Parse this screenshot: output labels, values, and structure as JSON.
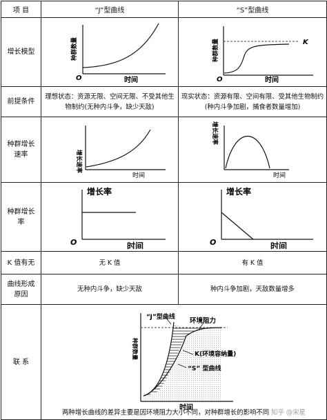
{
  "header": {
    "c0": "项 目",
    "c1": "“J”型曲线",
    "c2": "“S”型曲线"
  },
  "rows": {
    "model": "增长模型",
    "premise": "前提条件",
    "rate_curve": "种群增长速率",
    "rate": "种群增长率",
    "k": "K 值有无",
    "cause": "曲线形成原因",
    "relation": "联 系"
  },
  "premise": {
    "j": "理想状态：资源无限、空间无限、不受其他生物制约(无种内斗争，缺少天敌)",
    "s": "现实状态：资源有限、空间有限、受其他生物制约(种内斗争加剧，捕食者数量增加)"
  },
  "k_value": {
    "j": "无 K 值",
    "s": "有 K 值"
  },
  "cause": {
    "j": "无种内斗争，缺少天敌",
    "s": "种内斗争加剧，天敌数量增多"
  },
  "axes": {
    "population": "种群数量",
    "time": "时间",
    "origin": "O",
    "k_label": "K",
    "rate_speed": "增长速率",
    "growth_rate": "增长率"
  },
  "relation": {
    "j_curve": "“J”型曲线",
    "resistance": "环境阻力",
    "k_capacity": "K(环境容纳量)",
    "s_curve": "“S” 型曲线",
    "caption": "两种增长曲线的差异主要是因环境阻力大小不同，对种群增长的影响不同",
    "watermark": "知乎 @宋星"
  }
}
